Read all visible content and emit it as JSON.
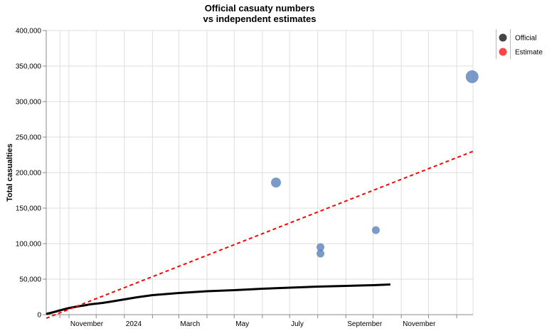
{
  "chart_data": {
    "type": "scatter",
    "title_lines": [
      "Official casuaty numbers",
      "vs independent estimates"
    ],
    "ylabel": "Total casualties",
    "xlabel": "",
    "ylim": [
      0,
      400000
    ],
    "y_ticks": [
      0,
      50000,
      100000,
      150000,
      200000,
      250000,
      300000,
      350000,
      400000
    ],
    "y_tick_labels": [
      "0",
      "50,000",
      "100,000",
      "150,000",
      "200,000",
      "250,000",
      "300,000",
      "350,000",
      "400,000"
    ],
    "x_range": [
      "2023-10-07",
      "2025-01-19"
    ],
    "x_ticks": [
      {
        "date": "2023-11-01",
        "label": "November"
      },
      {
        "date": "2024-01-01",
        "label": "2024"
      },
      {
        "date": "2024-03-01",
        "label": "March"
      },
      {
        "date": "2024-05-01",
        "label": "May"
      },
      {
        "date": "2024-07-01",
        "label": "July"
      },
      {
        "date": "2024-09-01",
        "label": "September"
      },
      {
        "date": "2024-11-01",
        "label": "November"
      }
    ],
    "x_gridlines": [
      "2023-10-22",
      "2023-11-01",
      "2023-12-01",
      "2024-01-01",
      "2024-02-01",
      "2024-03-01",
      "2024-04-01",
      "2024-05-01",
      "2024-06-01",
      "2024-07-01",
      "2024-08-01",
      "2024-09-01",
      "2024-10-01",
      "2024-11-01",
      "2024-12-01",
      "2025-01-01"
    ],
    "legend": {
      "placement": "right",
      "items": [
        {
          "label": "Official",
          "color": "#444444"
        },
        {
          "label": "Estimate",
          "color": "#ff4444"
        }
      ]
    },
    "series": [
      {
        "name": "Official",
        "kind": "line",
        "color": "#000000",
        "points": [
          [
            "2023-10-07",
            1000
          ],
          [
            "2023-10-15",
            3500
          ],
          [
            "2023-10-22",
            6000
          ],
          [
            "2023-10-31",
            9000
          ],
          [
            "2023-11-10",
            11500
          ],
          [
            "2023-11-18",
            13000
          ],
          [
            "2023-11-24",
            14500
          ],
          [
            "2023-12-01",
            15500
          ],
          [
            "2023-12-08",
            16500
          ],
          [
            "2023-12-18",
            18500
          ],
          [
            "2024-01-01",
            21500
          ],
          [
            "2024-01-15",
            24500
          ],
          [
            "2024-02-01",
            27500
          ],
          [
            "2024-03-01",
            30500
          ],
          [
            "2024-04-01",
            33000
          ],
          [
            "2024-05-01",
            34500
          ],
          [
            "2024-06-01",
            36500
          ],
          [
            "2024-07-01",
            38000
          ],
          [
            "2024-08-01",
            39500
          ],
          [
            "2024-09-01",
            40500
          ],
          [
            "2024-10-01",
            41500
          ],
          [
            "2024-10-20",
            42500
          ]
        ]
      },
      {
        "name": "Estimate",
        "kind": "dashed-line",
        "color": "#ff0000",
        "points": [
          [
            "2023-10-07",
            -5000
          ],
          [
            "2025-01-19",
            230000
          ]
        ]
      },
      {
        "name": "Estimate",
        "kind": "bubbles",
        "color": "#4e79b7",
        "points": [
          {
            "date": "2024-06-16",
            "value": 186000,
            "size": "medium"
          },
          {
            "date": "2024-08-04",
            "value": 95000,
            "size": "small"
          },
          {
            "date": "2024-08-04",
            "value": 86000,
            "size": "small"
          },
          {
            "date": "2024-10-04",
            "value": 119000,
            "size": "small"
          },
          {
            "date": "2025-01-18",
            "value": 335000,
            "size": "large"
          }
        ]
      }
    ]
  }
}
